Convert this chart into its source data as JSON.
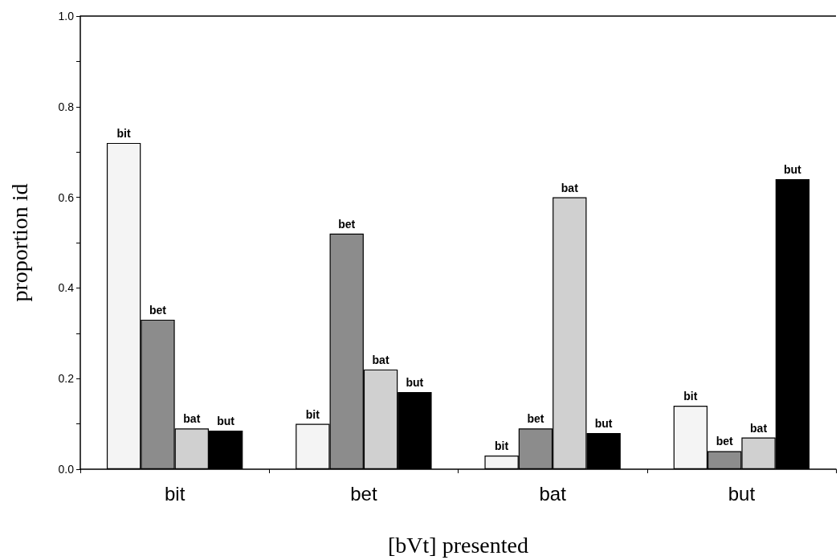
{
  "chart_data": {
    "type": "bar",
    "xlabel": "[bVt] presented",
    "ylabel": "proportion id",
    "categories": [
      "bit",
      "bet",
      "bat",
      "but"
    ],
    "series": [
      {
        "name": "bit",
        "color": "#f4f4f4",
        "values": [
          0.72,
          0.1,
          0.03,
          0.14
        ]
      },
      {
        "name": "bet",
        "color": "#8c8c8c",
        "values": [
          0.33,
          0.52,
          0.09,
          0.04
        ]
      },
      {
        "name": "bat",
        "color": "#d0d0d0",
        "values": [
          0.09,
          0.22,
          0.6,
          0.07
        ]
      },
      {
        "name": "but",
        "color": "#000000",
        "values": [
          0.085,
          0.17,
          0.08,
          0.64
        ]
      }
    ],
    "ylim": [
      0,
      1
    ],
    "yticks": [
      {
        "value": 0,
        "label": "0.0"
      },
      {
        "value": 0.1,
        "label": null
      },
      {
        "value": 0.2,
        "label": "0.2"
      },
      {
        "value": 0.3,
        "label": null
      },
      {
        "value": 0.4,
        "label": "0.4"
      },
      {
        "value": 0.5,
        "label": null
      },
      {
        "value": 0.6,
        "label": "0.6"
      },
      {
        "value": 0.7,
        "label": null
      },
      {
        "value": 0.8,
        "label": "0.8"
      },
      {
        "value": 0.9,
        "label": null
      },
      {
        "value": 1,
        "label": "1.0"
      }
    ],
    "grid": false,
    "legend": false
  }
}
